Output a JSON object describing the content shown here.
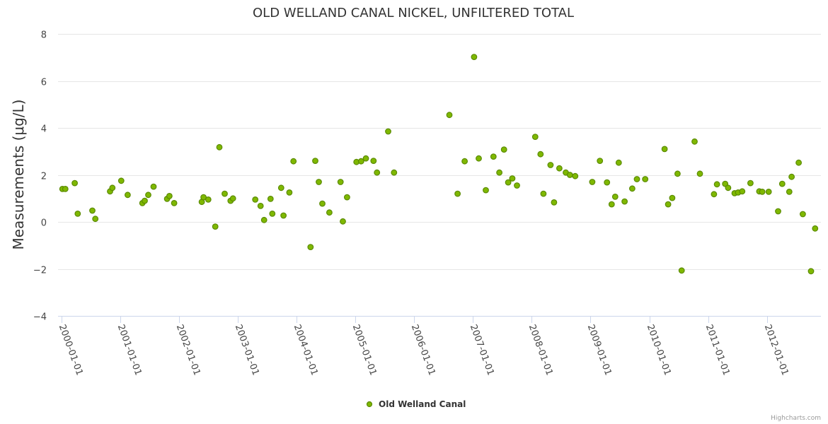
{
  "chart_data": {
    "type": "scatter",
    "title": "OLD WELLAND CANAL NICKEL, UNFILTERED TOTAL",
    "ylabel": "Measurements (μg/L)",
    "xlabel": "",
    "ylim": [
      -4,
      8
    ],
    "yticks": [
      -4,
      -2,
      0,
      2,
      4,
      6,
      8
    ],
    "ytick_labels": [
      "−4",
      "−2",
      "0",
      "2",
      "4",
      "6",
      "8"
    ],
    "xlim": [
      2000.0,
      2012.95
    ],
    "xticks": [
      2000,
      2001,
      2002,
      2003,
      2004,
      2005,
      2006,
      2007,
      2008,
      2009,
      2010,
      2011,
      2012
    ],
    "xtick_labels": [
      "2000-01-01",
      "2001-01-01",
      "2002-01-01",
      "2003-01-01",
      "2004-01-01",
      "2005-01-01",
      "2006-01-01",
      "2007-01-01",
      "2008-01-01",
      "2009-01-01",
      "2010-01-01",
      "2011-01-01",
      "2012-01-01"
    ],
    "grid": true,
    "legend_position": "bottom-center",
    "series": [
      {
        "name": "Old Welland Canal",
        "color": "#7fb800",
        "stroke": "#5a8a00",
        "points": [
          [
            2000.02,
            1.4
          ],
          [
            2000.07,
            1.4
          ],
          [
            2000.23,
            1.65
          ],
          [
            2000.28,
            0.35
          ],
          [
            2000.53,
            0.48
          ],
          [
            2000.58,
            0.13
          ],
          [
            2000.83,
            1.3
          ],
          [
            2000.87,
            1.45
          ],
          [
            2001.02,
            1.75
          ],
          [
            2001.13,
            1.15
          ],
          [
            2001.38,
            0.8
          ],
          [
            2001.42,
            0.9
          ],
          [
            2001.48,
            1.15
          ],
          [
            2001.57,
            1.5
          ],
          [
            2001.8,
            0.98
          ],
          [
            2001.84,
            1.1
          ],
          [
            2001.92,
            0.8
          ],
          [
            2002.39,
            0.85
          ],
          [
            2002.42,
            1.05
          ],
          [
            2002.5,
            0.95
          ],
          [
            2002.62,
            -0.2
          ],
          [
            2002.69,
            3.18
          ],
          [
            2002.78,
            1.2
          ],
          [
            2002.88,
            0.9
          ],
          [
            2002.92,
            1.0
          ],
          [
            2003.3,
            0.95
          ],
          [
            2003.39,
            0.68
          ],
          [
            2003.45,
            0.08
          ],
          [
            2003.56,
            0.98
          ],
          [
            2003.59,
            0.35
          ],
          [
            2003.74,
            1.45
          ],
          [
            2003.78,
            0.27
          ],
          [
            2003.88,
            1.25
          ],
          [
            2003.95,
            2.58
          ],
          [
            2004.24,
            -1.07
          ],
          [
            2004.32,
            2.6
          ],
          [
            2004.38,
            1.7
          ],
          [
            2004.44,
            0.78
          ],
          [
            2004.56,
            0.4
          ],
          [
            2004.75,
            1.7
          ],
          [
            2004.79,
            0.02
          ],
          [
            2004.86,
            1.05
          ],
          [
            2005.02,
            2.55
          ],
          [
            2005.1,
            2.58
          ],
          [
            2005.18,
            2.7
          ],
          [
            2005.31,
            2.6
          ],
          [
            2005.37,
            2.1
          ],
          [
            2005.56,
            3.85
          ],
          [
            2005.66,
            2.1
          ],
          [
            2006.6,
            4.55
          ],
          [
            2006.74,
            1.2
          ],
          [
            2006.86,
            2.58
          ],
          [
            2007.02,
            7.02
          ],
          [
            2007.1,
            2.7
          ],
          [
            2007.22,
            1.35
          ],
          [
            2007.35,
            2.78
          ],
          [
            2007.45,
            2.1
          ],
          [
            2007.53,
            3.08
          ],
          [
            2007.6,
            1.68
          ],
          [
            2007.67,
            1.85
          ],
          [
            2007.75,
            1.55
          ],
          [
            2008.06,
            3.62
          ],
          [
            2008.15,
            2.88
          ],
          [
            2008.2,
            1.2
          ],
          [
            2008.32,
            2.42
          ],
          [
            2008.38,
            0.83
          ],
          [
            2008.47,
            2.28
          ],
          [
            2008.58,
            2.1
          ],
          [
            2008.65,
            2.0
          ],
          [
            2008.74,
            1.95
          ],
          [
            2009.03,
            1.7
          ],
          [
            2009.16,
            2.6
          ],
          [
            2009.28,
            1.68
          ],
          [
            2009.36,
            0.75
          ],
          [
            2009.42,
            1.07
          ],
          [
            2009.48,
            2.52
          ],
          [
            2009.58,
            0.87
          ],
          [
            2009.71,
            1.42
          ],
          [
            2009.79,
            1.82
          ],
          [
            2009.93,
            1.82
          ],
          [
            2010.26,
            3.1
          ],
          [
            2010.32,
            0.75
          ],
          [
            2010.39,
            1.02
          ],
          [
            2010.48,
            2.05
          ],
          [
            2010.55,
            -2.07
          ],
          [
            2010.77,
            3.42
          ],
          [
            2010.86,
            2.05
          ],
          [
            2011.1,
            1.18
          ],
          [
            2011.15,
            1.6
          ],
          [
            2011.29,
            1.62
          ],
          [
            2011.34,
            1.45
          ],
          [
            2011.45,
            1.22
          ],
          [
            2011.51,
            1.25
          ],
          [
            2011.58,
            1.3
          ],
          [
            2011.72,
            1.65
          ],
          [
            2011.87,
            1.3
          ],
          [
            2011.92,
            1.28
          ],
          [
            2012.03,
            1.28
          ],
          [
            2012.19,
            0.45
          ],
          [
            2012.26,
            1.62
          ],
          [
            2012.38,
            1.28
          ],
          [
            2012.42,
            1.92
          ],
          [
            2012.54,
            2.52
          ],
          [
            2012.61,
            0.33
          ],
          [
            2012.75,
            -2.1
          ],
          [
            2012.82,
            -0.28
          ]
        ]
      }
    ],
    "credits": "Highcharts.com"
  }
}
